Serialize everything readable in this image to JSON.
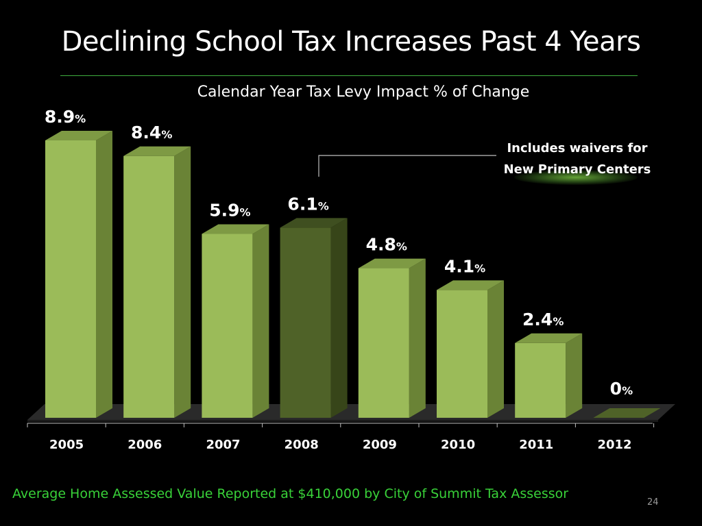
{
  "slide": {
    "title": "Declining School Tax Increases Past 4 Years",
    "footer": "Average Home Assessed Value Reported at $410,000  by City of Summit Tax Assessor",
    "page_number": "24"
  },
  "callout": {
    "line1": "Includes waivers for",
    "line2": "New Primary Centers"
  },
  "colors": {
    "bar_front": "#9bbb59",
    "bar_top": "#7e9a44",
    "bar_side": "#6a8336",
    "highlight_front": "#4f6228",
    "highlight_top": "#3f4f20",
    "highlight_side": "#374519",
    "accent_green": "#39d239"
  },
  "chart_data": {
    "type": "bar",
    "title": "Calendar Year Tax Levy Impact % of Change",
    "xlabel": "",
    "ylabel": "",
    "categories": [
      "2005",
      "2006",
      "2007",
      "2008",
      "2009",
      "2010",
      "2011",
      "2012"
    ],
    "values": [
      8.9,
      8.4,
      5.9,
      6.1,
      4.8,
      4.1,
      2.4,
      0
    ],
    "value_labels": [
      "8.9",
      "8.4",
      "5.9",
      "6.1",
      "4.8",
      "4.1",
      "2.4",
      "0"
    ],
    "unit_suffix": "%",
    "highlighted_category": "2008",
    "ylim": [
      0,
      9.5
    ],
    "grid": false,
    "legend": "none"
  }
}
